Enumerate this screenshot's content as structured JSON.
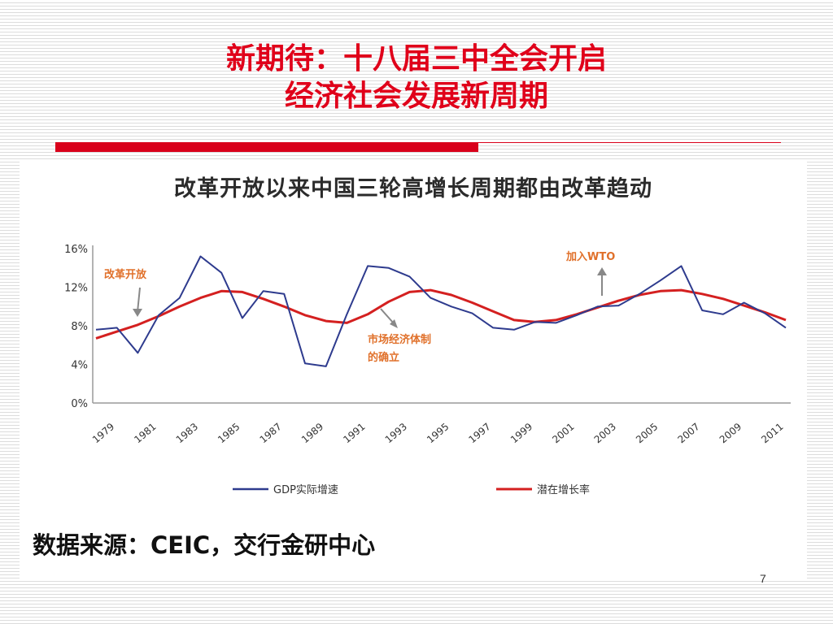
{
  "slide": {
    "title_line1": "新期待：十八届三中全会开启",
    "title_line2": "经济社会发展新周期",
    "source": "数据来源：CEIC，交行金研中心",
    "page_number": "7"
  },
  "colors": {
    "title": "#e0001a",
    "gdp_line": "#2e3b8e",
    "potential_line": "#d42020",
    "annotation": "#e0702a"
  },
  "chart_data": {
    "type": "line",
    "title": "改革开放以来中国三轮高增长周期都由改革趋动",
    "x": [
      1979,
      1980,
      1981,
      1982,
      1983,
      1984,
      1985,
      1986,
      1987,
      1988,
      1989,
      1990,
      1991,
      1992,
      1993,
      1994,
      1995,
      1996,
      1997,
      1998,
      1999,
      2000,
      2001,
      2002,
      2003,
      2004,
      2005,
      2006,
      2007,
      2008,
      2009,
      2010,
      2011,
      2012
    ],
    "x_tick_labels": [
      "1979",
      "1981",
      "1983",
      "1985",
      "1987",
      "1989",
      "1991",
      "1993",
      "1995",
      "1997",
      "1999",
      "2001",
      "2003",
      "2005",
      "2007",
      "2009",
      "2011"
    ],
    "y_tick_labels": [
      "0%",
      "4%",
      "8%",
      "12%",
      "16%"
    ],
    "ylim": [
      0,
      16
    ],
    "grid": false,
    "legend_position": "bottom",
    "series": [
      {
        "name": "GDP实际增速",
        "color": "#2e3b8e",
        "values": [
          7.6,
          7.8,
          5.2,
          9.1,
          10.9,
          15.2,
          13.5,
          8.8,
          11.6,
          11.3,
          4.1,
          3.8,
          9.2,
          14.2,
          14.0,
          13.1,
          10.9,
          10.0,
          9.3,
          7.8,
          7.6,
          8.4,
          8.3,
          9.1,
          10.0,
          10.1,
          11.3,
          12.7,
          14.2,
          9.6,
          9.2,
          10.4,
          9.3,
          7.8
        ]
      },
      {
        "name": "潜在增长率",
        "color": "#d42020",
        "values": [
          6.7,
          7.4,
          8.1,
          9.0,
          10.0,
          10.9,
          11.6,
          11.5,
          10.8,
          10.0,
          9.1,
          8.5,
          8.3,
          9.2,
          10.5,
          11.5,
          11.7,
          11.2,
          10.4,
          9.5,
          8.6,
          8.4,
          8.6,
          9.2,
          9.9,
          10.6,
          11.2,
          11.6,
          11.7,
          11.3,
          10.8,
          10.1,
          9.4,
          8.6
        ]
      }
    ],
    "annotations": [
      {
        "text": "改革开放",
        "x": 1981,
        "y": 9.6
      },
      {
        "text": "市场经济体制的确立",
        "x": 1994,
        "y": 10.5
      },
      {
        "text": "加入WTO",
        "x": 2006,
        "y": 12.6
      }
    ]
  }
}
